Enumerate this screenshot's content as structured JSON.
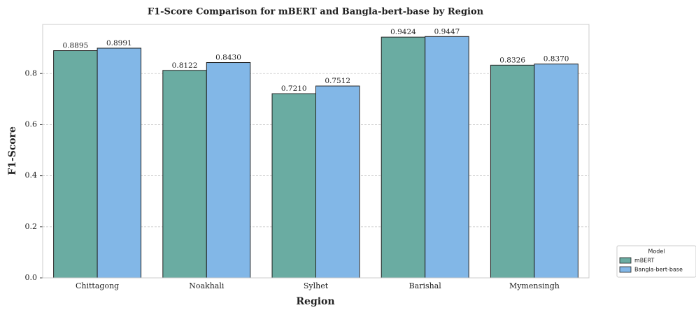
{
  "chart_data": {
    "type": "bar",
    "title": "F1-Score Comparison for mBERT and Bangla-bert-base by Region",
    "xlabel": "Region",
    "ylabel": "F1-Score",
    "categories": [
      "Chittagong",
      "Noakhali",
      "Sylhet",
      "Barishal",
      "Mymensingh"
    ],
    "series": [
      {
        "name": "mBERT",
        "color": "#6aaca2",
        "values": [
          0.8895,
          0.8122,
          0.721,
          0.9424,
          0.8326
        ],
        "value_labels": [
          "0.8895",
          "0.8122",
          "0.7210",
          "0.9424",
          "0.8326"
        ]
      },
      {
        "name": "Bangla-bert-base",
        "color": "#82b7e7",
        "values": [
          0.8991,
          0.843,
          0.7512,
          0.9447,
          0.837
        ],
        "value_labels": [
          "0.8991",
          "0.8430",
          "0.7512",
          "0.9447",
          "0.8370"
        ]
      }
    ],
    "ylim": [
      0,
      0.992
    ],
    "yticks": [
      {
        "value": 0,
        "label": "0.0"
      },
      0.2,
      0.4,
      0.6,
      0.8
    ],
    "grid": true,
    "legend_title": "Model",
    "legend_position": "outside-lower-right"
  }
}
